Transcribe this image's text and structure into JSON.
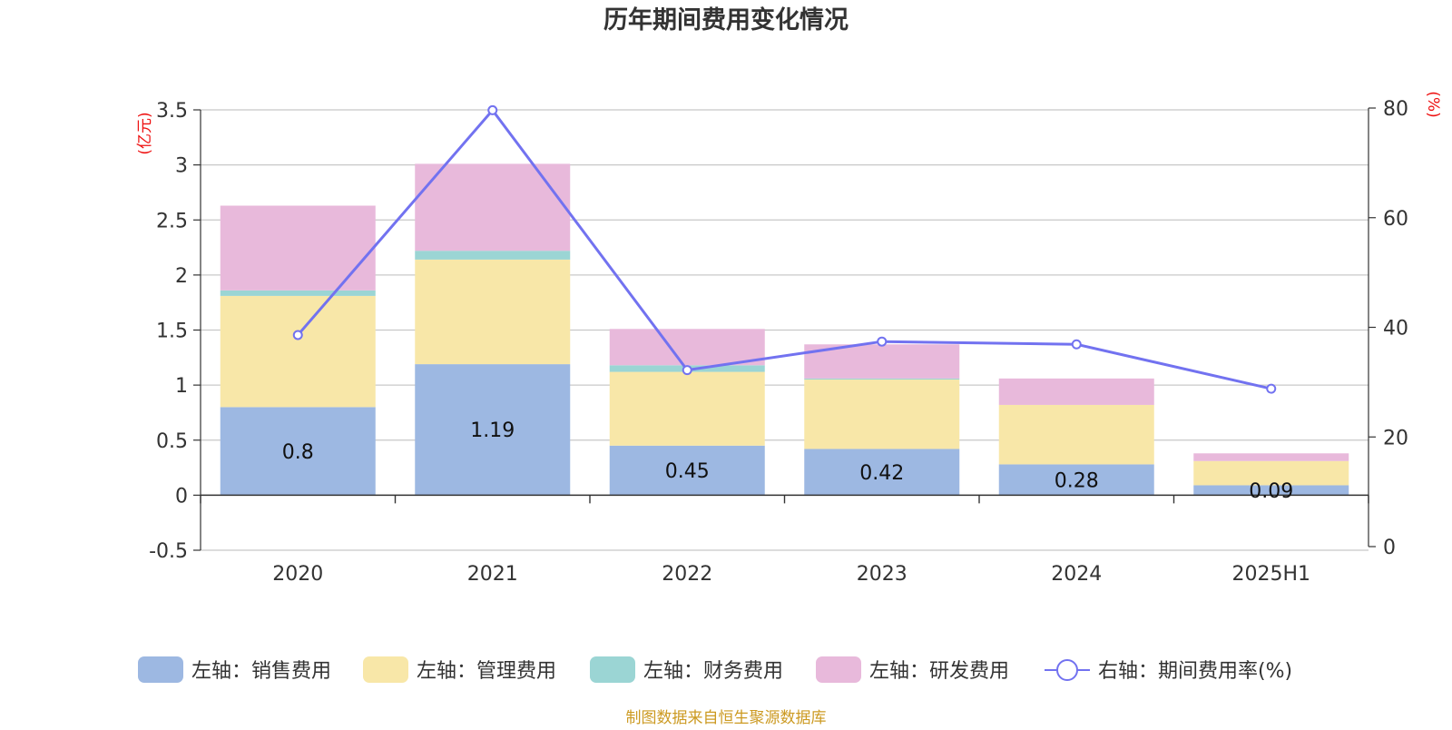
{
  "chart_data": {
    "type": "bar",
    "title": "历年期间费用变化情况",
    "categories": [
      "2020",
      "2021",
      "2022",
      "2023",
      "2024",
      "2025H1"
    ],
    "left_axis": {
      "unit": "(亿元)",
      "ylim": [
        -0.5,
        3.5
      ],
      "ticks": [
        "3.5",
        "3",
        "2.5",
        "2",
        "1.5",
        "1",
        "0.5",
        "0",
        "-0.5"
      ]
    },
    "right_axis": {
      "unit": "(%)",
      "ylim": [
        0,
        80
      ],
      "ticks": [
        "80",
        "60",
        "40",
        "20",
        "0"
      ]
    },
    "series": [
      {
        "name": "左轴：销售费用",
        "axis": "left",
        "kind": "bar",
        "color": "#9db8e2",
        "values": [
          0.8,
          1.19,
          0.45,
          0.42,
          0.28,
          0.09
        ],
        "labels": [
          "0.8",
          "1.19",
          "0.45",
          "0.42",
          "0.28",
          "0.09"
        ]
      },
      {
        "name": "左轴：管理费用",
        "axis": "left",
        "kind": "bar",
        "color": "#f8e7a8",
        "values": [
          1.01,
          0.95,
          0.67,
          0.63,
          0.54,
          0.22
        ]
      },
      {
        "name": "左轴：财务费用",
        "axis": "left",
        "kind": "bar",
        "color": "#9bd5d4",
        "values": [
          0.05,
          0.08,
          0.06,
          0.01,
          0.0,
          0.0
        ]
      },
      {
        "name": "左轴：研发费用",
        "axis": "left",
        "kind": "bar",
        "color": "#e8b9db",
        "values": [
          0.77,
          0.79,
          0.33,
          0.31,
          0.24,
          0.07
        ]
      },
      {
        "name": "右轴：期间费用率(%)",
        "axis": "right",
        "kind": "line",
        "color": "#7272f0",
        "values": [
          38.6,
          79.6,
          32.2,
          37.4,
          36.9,
          28.8
        ]
      }
    ],
    "grid": true,
    "legend_position": "bottom",
    "source": "制图数据来自恒生聚源数据库"
  }
}
